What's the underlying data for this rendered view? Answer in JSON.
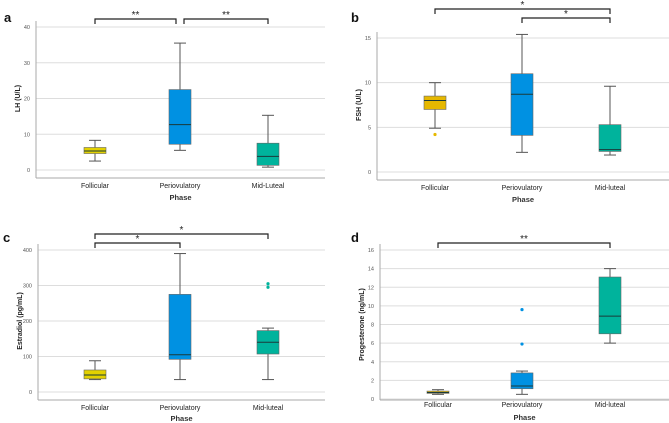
{
  "colors": {
    "follicular_a": "#e3d100",
    "follicular": "#e6b800",
    "periovulatory": "#0091e2",
    "midluteal": "#00b39c"
  },
  "chart_data": [
    {
      "type": "box",
      "panel": "a",
      "xlabel": "Phase",
      "ylabel": "LH (U/L)",
      "ylim": [
        0,
        40
      ],
      "yticks": [
        0,
        10,
        20,
        30,
        40
      ],
      "grid": true,
      "categories": [
        "Follicular",
        "Periovulatory",
        "Mid-Luteal"
      ],
      "boxes": [
        {
          "min": 2.5,
          "q1": 4.6,
          "median": 5.3,
          "q3": 6.3,
          "max": 8.3,
          "outliers": [],
          "color": "follicular_a"
        },
        {
          "min": 5.5,
          "q1": 7.2,
          "median": 12.7,
          "q3": 22.5,
          "max": 35.5,
          "outliers": [],
          "color": "periovulatory"
        },
        {
          "min": 0.8,
          "q1": 1.3,
          "median": 3.8,
          "q3": 7.5,
          "max": 15.3,
          "outliers": [],
          "color": "midluteal"
        }
      ],
      "significance": [
        {
          "from": 0,
          "to": 1,
          "label": "**",
          "level": 0
        },
        {
          "from": 1,
          "to": 2,
          "label": "**",
          "level": 0
        }
      ]
    },
    {
      "type": "box",
      "panel": "b",
      "xlabel": "Phase",
      "ylabel": "FSH (U/L)",
      "ylim": [
        0,
        15
      ],
      "yticks": [
        0,
        5,
        10,
        15
      ],
      "grid": true,
      "categories": [
        "Follicular",
        "Periovulatory",
        "Mid-luteal"
      ],
      "boxes": [
        {
          "min": 4.9,
          "q1": 7.0,
          "median": 8.0,
          "q3": 8.5,
          "max": 10.0,
          "outliers": [
            4.2
          ],
          "color": "follicular"
        },
        {
          "min": 2.2,
          "q1": 4.1,
          "median": 8.7,
          "q3": 11.0,
          "max": 15.4,
          "outliers": [],
          "color": "periovulatory"
        },
        {
          "min": 1.9,
          "q1": 2.3,
          "median": 2.5,
          "q3": 5.3,
          "max": 9.6,
          "outliers": [],
          "color": "midluteal"
        }
      ],
      "significance": [
        {
          "from": 0,
          "to": 2,
          "label": "*",
          "level": 1
        },
        {
          "from": 1,
          "to": 2,
          "label": "*",
          "level": 0
        }
      ]
    },
    {
      "type": "box",
      "panel": "c",
      "xlabel": "Phase",
      "ylabel": "Estradiol (pg/mL)",
      "ylim": [
        0,
        400
      ],
      "yticks": [
        0,
        100,
        200,
        300,
        400
      ],
      "grid": true,
      "categories": [
        "Follicular",
        "Periovulatory",
        "Mid-luteal"
      ],
      "boxes": [
        {
          "min": 35,
          "q1": 37,
          "median": 48,
          "q3": 62,
          "max": 88,
          "outliers": [],
          "color": "follicular_a"
        },
        {
          "min": 35,
          "q1": 92,
          "median": 105,
          "q3": 275,
          "max": 390,
          "outliers": [],
          "color": "periovulatory"
        },
        {
          "min": 35,
          "q1": 107,
          "median": 140,
          "q3": 173,
          "max": 180,
          "outliers": [
            295,
            305
          ],
          "color": "midluteal"
        }
      ],
      "significance": [
        {
          "from": 0,
          "to": 2,
          "label": "*",
          "level": 1
        },
        {
          "from": 0,
          "to": 1,
          "label": "*",
          "level": 0
        }
      ]
    },
    {
      "type": "box",
      "panel": "d",
      "xlabel": "Phase",
      "ylabel": "Progesterone (ng/mL)",
      "ylim": [
        0,
        16
      ],
      "yticks": [
        0,
        2,
        4,
        6,
        8,
        10,
        12,
        14,
        16
      ],
      "grid": true,
      "categories": [
        "Follicular",
        "Periovulatory",
        "Mid-luteal"
      ],
      "boxes": [
        {
          "min": 0.5,
          "q1": 0.6,
          "median": 0.7,
          "q3": 0.85,
          "max": 1.0,
          "outliers": [],
          "color": "follicular"
        },
        {
          "min": 0.5,
          "q1": 1.1,
          "median": 1.4,
          "q3": 2.8,
          "max": 3.0,
          "outliers": [
            5.9,
            9.6
          ],
          "color": "periovulatory"
        },
        {
          "min": 6.0,
          "q1": 7.0,
          "median": 8.9,
          "q3": 13.1,
          "max": 14.0,
          "outliers": [],
          "color": "midluteal"
        }
      ],
      "significance": [
        {
          "from": 0,
          "to": 2,
          "label": "**",
          "level": 0
        }
      ]
    }
  ]
}
